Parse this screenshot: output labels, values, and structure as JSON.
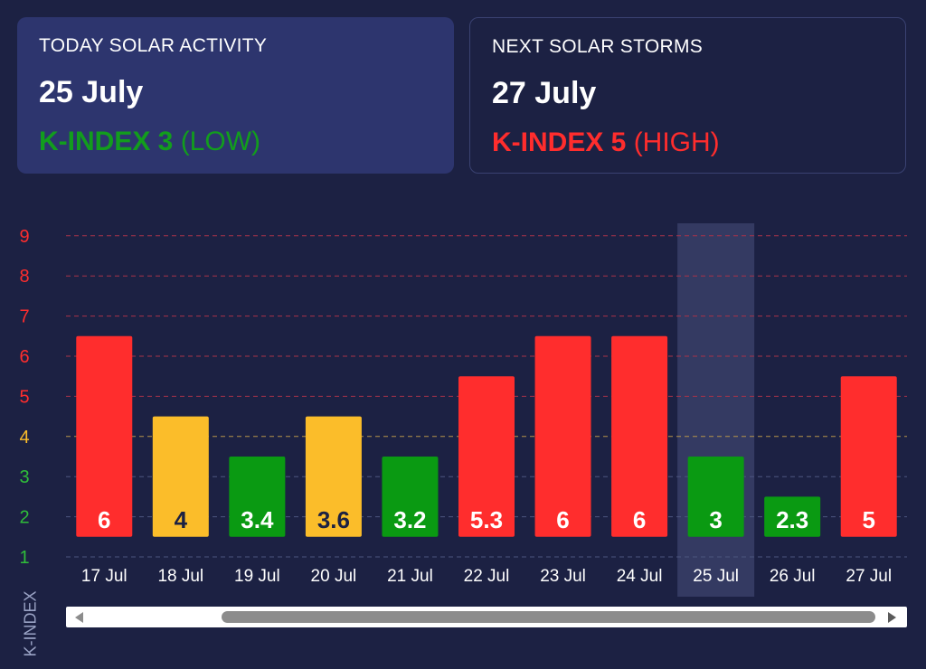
{
  "today": {
    "label": "TODAY SOLAR ACTIVITY",
    "date": "25 July",
    "k_prefix": "K-INDEX 3",
    "k_suffix": " (LOW)",
    "color": "#129d1d"
  },
  "next": {
    "label": "NEXT SOLAR STORMS",
    "date": "27 July",
    "k_prefix": "K-INDEX 5",
    "k_suffix": " (HIGH)",
    "color": "#ff2d2d"
  },
  "chart_data": {
    "type": "bar",
    "categories": [
      "17 Jul",
      "18 Jul",
      "19 Jul",
      "20 Jul",
      "21 Jul",
      "22 Jul",
      "23 Jul",
      "24 Jul",
      "25 Jul",
      "26 Jul",
      "27 Jul"
    ],
    "values": [
      6,
      4,
      3.4,
      3.6,
      3.2,
      5.3,
      6,
      6,
      3,
      2.3,
      5
    ],
    "bar_heights": [
      6.5,
      4.5,
      3.5,
      4.5,
      3.5,
      5.5,
      6.5,
      6.5,
      3.5,
      2.5,
      5.5
    ],
    "labels": [
      "6",
      "4",
      "3.4",
      "3.6",
      "3.2",
      "5.3",
      "6",
      "6",
      "3",
      "2.3",
      "5"
    ],
    "bar_colors": [
      "#ff2d2d",
      "#fbbd2a",
      "#0a9a12",
      "#fbbd2a",
      "#0a9a12",
      "#ff2d2d",
      "#ff2d2d",
      "#ff2d2d",
      "#0a9a12",
      "#0a9a12",
      "#ff2d2d"
    ],
    "label_colors": [
      "#ffffff",
      "#1c2143",
      "#ffffff",
      "#1c2143",
      "#ffffff",
      "#ffffff",
      "#ffffff",
      "#ffffff",
      "#ffffff",
      "#ffffff",
      "#ffffff"
    ],
    "yticks": [
      "1",
      "2",
      "3",
      "4",
      "5",
      "6",
      "7",
      "8",
      "9"
    ],
    "ytick_colors": [
      "#2fbe3a",
      "#2fbe3a",
      "#2fbe3a",
      "#fbbd2a",
      "#ff2d2d",
      "#ff2d2d",
      "#ff2d2d",
      "#ff2d2d",
      "#ff2d2d"
    ],
    "ylabel": "K-INDEX",
    "ylim": [
      1,
      9
    ],
    "highlight": "25 Jul",
    "grid": true
  }
}
